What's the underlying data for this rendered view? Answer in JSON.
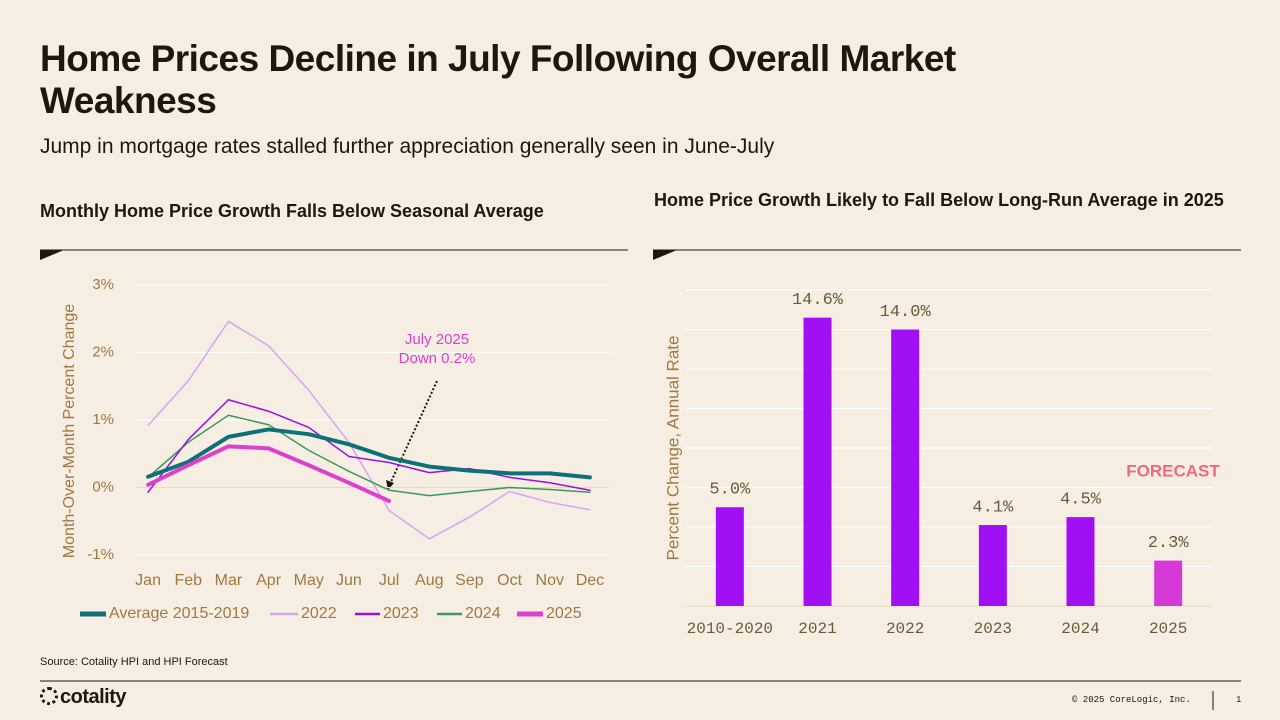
{
  "header": {
    "title": "Home Prices Decline in July Following Overall Market Weakness",
    "subtitle": "Jump in mortgage rates stalled further appreciation generally seen in June-July"
  },
  "chart_data": [
    {
      "type": "line",
      "title": "Monthly Home Price Growth Falls Below Seasonal Average",
      "y_label": "Month-Over-Month Percent Change",
      "categories": [
        "Jan",
        "Feb",
        "Mar",
        "Apr",
        "May",
        "Jun",
        "Jul",
        "Aug",
        "Sep",
        "Oct",
        "Nov",
        "Dec"
      ],
      "series": [
        {
          "name": "Average 2015-2019",
          "color": "#0e7178",
          "values": [
            0.16,
            0.38,
            0.75,
            0.86,
            0.79,
            0.64,
            0.44,
            0.31,
            0.25,
            0.21,
            0.21,
            0.15
          ]
        },
        {
          "name": "2022",
          "color": "#d9a3f5",
          "values": [
            0.92,
            1.58,
            2.46,
            2.1,
            1.44,
            0.67,
            -0.34,
            -0.76,
            -0.44,
            -0.06,
            -0.22,
            -0.33
          ]
        },
        {
          "name": "2023",
          "color": "#9a0ee0",
          "values": [
            -0.07,
            0.71,
            1.3,
            1.13,
            0.89,
            0.46,
            0.37,
            0.22,
            0.28,
            0.15,
            0.07,
            -0.04
          ]
        },
        {
          "name": "2024",
          "color": "#3c9a5a",
          "values": [
            0.15,
            0.67,
            1.07,
            0.93,
            0.55,
            0.24,
            -0.04,
            -0.12,
            -0.06,
            0,
            -0.03,
            -0.07
          ]
        },
        {
          "name": "2025",
          "color": "#dd40cc",
          "values": [
            0.04,
            0.33,
            0.61,
            0.58,
            0.33,
            0.07,
            -0.2,
            null,
            null,
            null,
            null,
            null
          ]
        }
      ],
      "ylim": [
        -1,
        3
      ],
      "yticks": [
        {
          "value": 3,
          "label": "3%"
        },
        {
          "value": 2,
          "label": "2%"
        },
        {
          "value": 1,
          "label": "1%"
        },
        {
          "value": 0,
          "label": "0%"
        },
        {
          "value": -1,
          "label": "-1%"
        }
      ],
      "grid": true,
      "legend": "bottom",
      "annotation": [
        "July 2025",
        "Down 0.2%"
      ]
    },
    {
      "type": "bar",
      "title": "Home Price Growth Likely to Fall Below Long-Run Average in 2025",
      "y_label": "Percent Change, Annual Rate",
      "categories": [
        "2010-2020",
        "2021",
        "2022",
        "2023",
        "2024",
        "2025"
      ],
      "values": [
        5.0,
        14.6,
        14.0,
        4.1,
        4.5,
        2.3
      ],
      "value_labels": [
        "5.0%",
        "14.6%",
        "14.0%",
        "4.1%",
        "4.5%",
        "2.3%"
      ],
      "colors": [
        "#a10ff5",
        "#a10ff5",
        "#a10ff5",
        "#a10ff5",
        "#a10ff5",
        "#d63ad6"
      ],
      "ylim": [
        0,
        16
      ],
      "yticks": [
        0,
        2,
        4,
        6,
        8,
        10,
        12,
        14,
        16
      ],
      "grid": true,
      "annotation": "FORECAST"
    }
  ],
  "source": "Source: Cotality HPI and HPI Forecast",
  "footer": {
    "logo": "cotality",
    "copyright": "© 2025 CoreLogic, Inc.",
    "page": "1"
  }
}
